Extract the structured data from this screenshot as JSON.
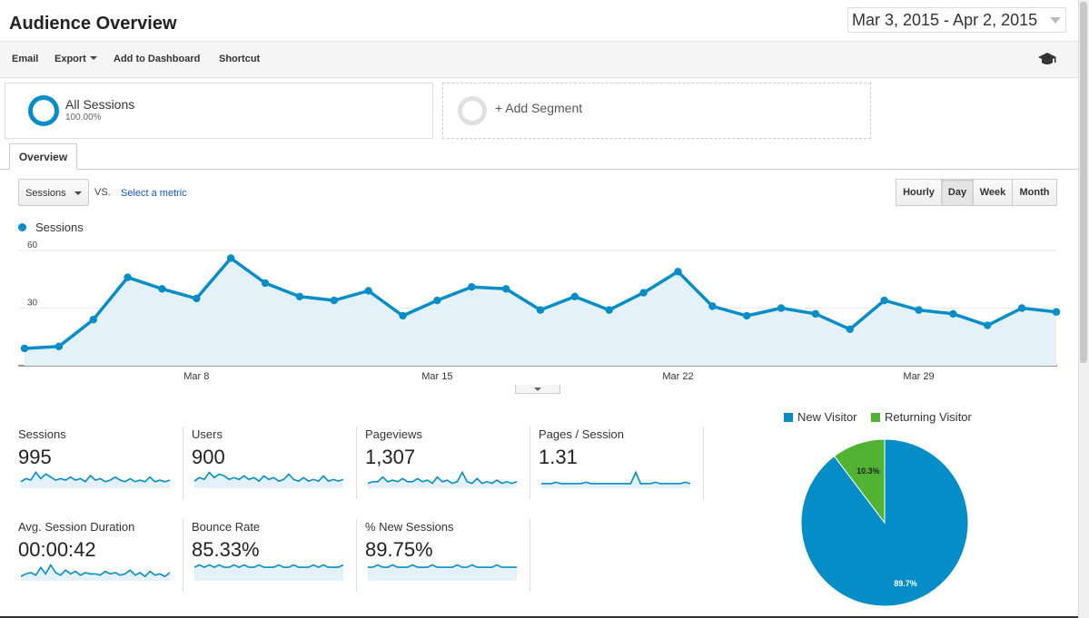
{
  "header": {
    "title": "Audience Overview",
    "date_range": "Mar 3, 2015 - Apr 2, 2015"
  },
  "toolbar": {
    "email": "Email",
    "export": "Export",
    "add_to_dashboard": "Add to Dashboard",
    "shortcut": "Shortcut",
    "right_icon": "graduation-cap-icon"
  },
  "segments": {
    "primary": {
      "name": "All Sessions",
      "percent": "100.00%"
    },
    "add": "+ Add Segment"
  },
  "tabs": {
    "overview": "Overview"
  },
  "controls": {
    "metric_select": "Sessions",
    "vs": "VS.",
    "select_metric": "Select a metric",
    "granularity": [
      "Hourly",
      "Day",
      "Week",
      "Month"
    ],
    "active_granularity": "Day"
  },
  "chart_data": {
    "type": "area",
    "series": [
      {
        "name": "Sessions",
        "color": "#058dc7",
        "values": [
          9,
          10,
          24,
          46,
          40,
          35,
          56,
          43,
          36,
          34,
          39,
          26,
          34,
          41,
          40,
          29,
          36,
          29,
          38,
          49,
          31,
          26,
          30,
          27,
          19,
          34,
          29,
          27,
          21,
          30,
          28
        ]
      }
    ],
    "x_start": "Mar 3, 2015",
    "x_tick_labels": [
      "Mar 8",
      "Mar 15",
      "Mar 22",
      "Mar 29"
    ],
    "y_tick_labels": [
      "30",
      "60"
    ],
    "ylim": [
      0,
      60
    ],
    "grid": true
  },
  "metrics": [
    {
      "label": "Sessions",
      "value": "995",
      "spark": [
        3,
        5,
        4,
        9,
        5,
        8,
        6,
        4,
        5,
        4,
        6,
        4,
        5,
        3,
        7,
        4,
        5,
        3,
        4,
        6,
        4,
        3,
        5,
        3,
        4,
        3,
        6,
        3,
        4,
        3,
        4
      ]
    },
    {
      "label": "Users",
      "value": "900",
      "spark": [
        3,
        5,
        4,
        8,
        5,
        7,
        6,
        4,
        5,
        4,
        6,
        4,
        5,
        3,
        6,
        4,
        5,
        3,
        4,
        7,
        4,
        3,
        5,
        3,
        4,
        3,
        6,
        3,
        4,
        3,
        4
      ]
    },
    {
      "label": "Pageviews",
      "value": "1,307",
      "spark": [
        2,
        3,
        3,
        6,
        3,
        4,
        3,
        5,
        3,
        3,
        5,
        3,
        4,
        2,
        6,
        3,
        4,
        2,
        3,
        9,
        3,
        2,
        5,
        2,
        3,
        2,
        4,
        2,
        3,
        2,
        3
      ]
    },
    {
      "label": "Pages / Session",
      "value": "1.31",
      "spark": [
        2,
        2,
        2,
        3,
        2,
        2,
        2,
        2,
        2,
        3,
        2,
        2,
        2,
        2,
        2,
        2,
        2,
        2,
        2,
        10,
        2,
        2,
        2,
        3,
        2,
        2,
        2,
        2,
        2,
        3,
        2
      ]
    },
    {
      "label": "Avg. Session Duration",
      "value": "00:00:42",
      "spark": [
        2,
        4,
        5,
        3,
        9,
        4,
        11,
        5,
        3,
        7,
        4,
        6,
        3,
        5,
        4,
        4,
        3,
        6,
        4,
        5,
        3,
        4,
        7,
        3,
        5,
        2,
        6,
        3,
        4,
        2,
        5
      ]
    },
    {
      "label": "Bounce Rate",
      "value": "85.33%",
      "spark": [
        5,
        6,
        5,
        6,
        5,
        6,
        5,
        5,
        6,
        5,
        6,
        5,
        5,
        6,
        5,
        5,
        5,
        6,
        5,
        5,
        6,
        5,
        5,
        5,
        6,
        5,
        6,
        5,
        5,
        5,
        6
      ]
    },
    {
      "label": "% New Sessions",
      "value": "89.75%",
      "spark": [
        5,
        5,
        6,
        5,
        5,
        6,
        5,
        5,
        5,
        6,
        5,
        5,
        5,
        6,
        5,
        5,
        5,
        5,
        6,
        5,
        5,
        6,
        5,
        5,
        5,
        5,
        6,
        5,
        5,
        5,
        5
      ]
    }
  ],
  "visitor_pie": {
    "legend": [
      {
        "name": "New Visitor",
        "color": "#058dc7"
      },
      {
        "name": "Returning Visitor",
        "color": "#50b432"
      }
    ],
    "slices": [
      {
        "name": "New Visitor",
        "value": 89.7,
        "label": "89.7%"
      },
      {
        "name": "Returning Visitor",
        "value": 10.3,
        "label": "10.3%"
      }
    ]
  }
}
